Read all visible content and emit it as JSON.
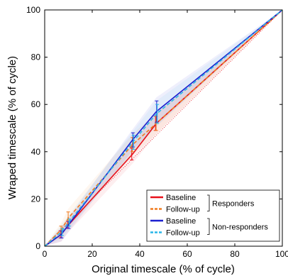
{
  "chart_data": {
    "type": "line",
    "xlabel": "Original timescale (% of cycle)",
    "ylabel": "Wraped timescale (% of cycle)",
    "xlim": [
      0,
      100
    ],
    "ylim": [
      0,
      100
    ],
    "xticks": [
      "0",
      "20",
      "40",
      "60",
      "80",
      "100"
    ],
    "yticks": [
      "0",
      "20",
      "40",
      "60",
      "80",
      "100"
    ],
    "grid": false,
    "legend_position": "bottom-right",
    "legend_groups": [
      {
        "label": "Responders",
        "entries": [
          0,
          1
        ]
      },
      {
        "label": "Non-responders",
        "entries": [
          2,
          3
        ]
      }
    ],
    "series": [
      {
        "name": "Baseline",
        "group": "Responders",
        "color": "#e8101a",
        "style": "solid",
        "x": [
          0,
          7,
          10,
          37,
          47,
          100
        ],
        "y": [
          0,
          5,
          9,
          39,
          52,
          100
        ],
        "errors": [
          0,
          1.5,
          1.5,
          2.5,
          3,
          0
        ]
      },
      {
        "name": "Follow-up",
        "group": "Responders",
        "color": "#f07a1e",
        "style": "dashed",
        "x": [
          0,
          7,
          10,
          37,
          47,
          100
        ],
        "y": [
          0,
          7,
          12,
          43,
          52,
          100
        ],
        "errors": [
          0,
          1.5,
          2.5,
          3,
          3,
          0
        ]
      },
      {
        "name": "Baseline",
        "group": "Non-responders",
        "color": "#1b1fd0",
        "style": "solid",
        "x": [
          0,
          7,
          10,
          37,
          47,
          100
        ],
        "y": [
          0,
          5,
          9,
          45,
          57,
          100
        ],
        "errors": [
          0,
          1.5,
          1.5,
          3,
          4.5,
          0
        ]
      },
      {
        "name": "Follow-up",
        "group": "Non-responders",
        "color": "#29b6e8",
        "style": "dashed",
        "x": [
          0,
          7,
          10,
          37,
          47,
          100
        ],
        "y": [
          0,
          6,
          10,
          44,
          56,
          100
        ],
        "errors": [
          0,
          1.5,
          1.5,
          3,
          4,
          0
        ]
      }
    ],
    "reference_line": {
      "x": [
        0,
        100
      ],
      "y": [
        0,
        100
      ],
      "color": "#e8101a",
      "style": "dotted"
    }
  }
}
